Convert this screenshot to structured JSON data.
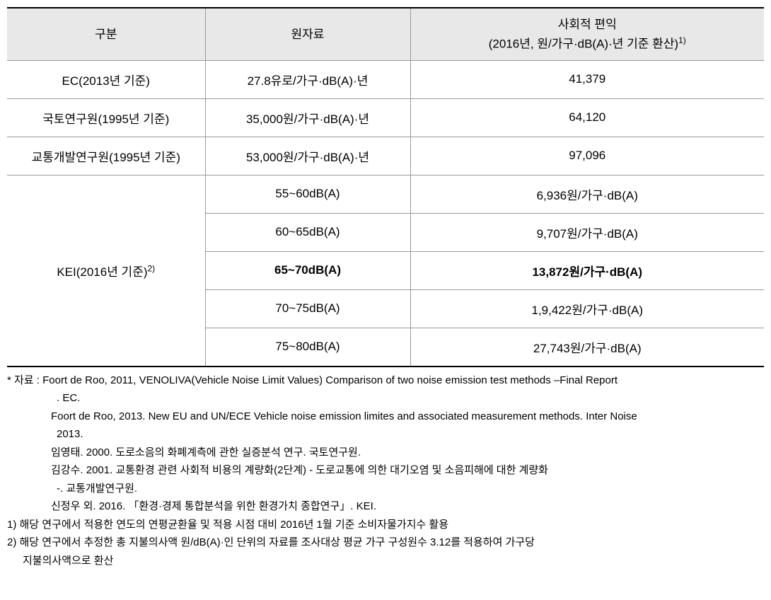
{
  "table": {
    "headers": {
      "col1": "구분",
      "col2": "원자료",
      "col3_line1": "사회적 편익",
      "col3_line2": "(2016년, 원/가구·dB(A)·년 기준 환산)",
      "col3_sup": "1)"
    },
    "rows": [
      {
        "c1": "EC(2013년 기준)",
        "c2": "27.8유로/가구·dB(A)·년",
        "c3": "41,379",
        "rowspan": 1,
        "bold": false
      },
      {
        "c1": "국토연구원(1995년 기준)",
        "c2": "35,000원/가구·dB(A)·년",
        "c3": "64,120",
        "rowspan": 1,
        "bold": false
      },
      {
        "c1": "교통개발연구원(1995년 기준)",
        "c2": "53,000원/가구·dB(A)·년",
        "c3": "97,096",
        "rowspan": 1,
        "bold": false
      }
    ],
    "kei": {
      "label": "KEI(2016년 기준)",
      "sup": "2)",
      "subrows": [
        {
          "c2": "55~60dB(A)",
          "c3": "6,936원/가구·dB(A)",
          "bold": false
        },
        {
          "c2": "60~65dB(A)",
          "c3": "9,707원/가구·dB(A)",
          "bold": false
        },
        {
          "c2": "65~70dB(A)",
          "c3": "13,872원/가구·dB(A)",
          "bold": true
        },
        {
          "c2": "70~75dB(A)",
          "c3": "1,9,422원/가구·dB(A)",
          "bold": false
        },
        {
          "c2": "75~80dB(A)",
          "c3": "27,743원/가구·dB(A)",
          "bold": false
        }
      ]
    }
  },
  "notes": {
    "source_label": "* 자료 : ",
    "sources": [
      "Foort de Roo, 2011, VENOLIVA(Vehicle Noise Limit Values) Comparison of two noise emission test methods –Final Report",
      ". EC.",
      "Foort de Roo, 2013. New EU and UN/ECE Vehicle noise emission limites and associated measurement methods. Inter Noise",
      "2013.",
      "임영태. 2000. 도로소음의 화폐계측에 관한 실증분석 연구. 국토연구원.",
      "김강수. 2001. 교통환경 관련 사회적 비용의 계량화(2단계) - 도로교통에 의한 대기오염 및 소음피해에 대한 계량화",
      "-. 교통개발연구원.",
      "신정우 외. 2016. 「환경·경제 통합분석을 위한 환경가치 종합연구」. KEI."
    ],
    "footnotes": [
      "1) 해당 연구에서 적용한 연도의 연평균환율 및 적용 시점 대비 2016년 1월 기준 소비자물가지수 활용",
      "2) 해당 연구에서 추정한 총 지불의사액 원/dB(A)·인 단위의 자료를 조사대상 평균 가구 구성원수 3.12를 적용하여 가구당",
      "    지불의사액으로 환산"
    ]
  }
}
